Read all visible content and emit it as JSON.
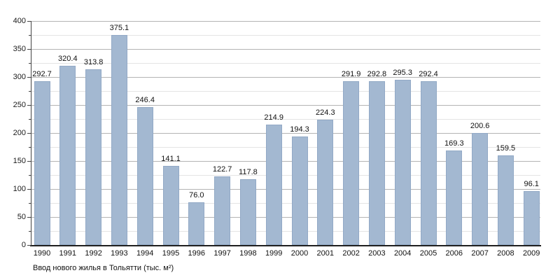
{
  "chart_data": {
    "type": "bar",
    "caption": "Ввод нового жилья в Тольятти (тыс. м²)",
    "categories": [
      "1990",
      "1991",
      "1992",
      "1993",
      "1994",
      "1995",
      "1996",
      "1997",
      "1998",
      "1999",
      "2000",
      "2001",
      "2002",
      "2003",
      "2004",
      "2005",
      "2006",
      "2007",
      "2008",
      "2009"
    ],
    "values": [
      292.7,
      320.4,
      313.8,
      375.1,
      246.4,
      141.1,
      76.0,
      122.7,
      117.8,
      214.9,
      194.3,
      224.3,
      291.9,
      292.8,
      295.3,
      292.4,
      169.3,
      200.6,
      159.5,
      96.1
    ],
    "value_labels": [
      "292.7",
      "320.4",
      "313.8",
      "375.1",
      "246.4",
      "141.1",
      "76.0",
      "122.7",
      "117.8",
      "214.9",
      "194.3",
      "224.3",
      "291.9",
      "292.8",
      "295.3",
      "292.4",
      "169.3",
      "200.6",
      "159.5",
      "96.1"
    ],
    "ylim": [
      0,
      400
    ],
    "y_major_step": 50,
    "y_minor_step": 25,
    "y_tick_labels": [
      "0",
      "50",
      "100",
      "150",
      "200",
      "250",
      "300",
      "350",
      "400"
    ],
    "grid": "on",
    "legend": "none",
    "colors": {
      "bar_fill": "#a3b8d1",
      "bar_border": "#92a9c6",
      "grid_major": "#b3b3b3",
      "grid_minor": "#e4e4e4",
      "axis": "#333333",
      "text": "#111111",
      "background": "#ffffff"
    }
  }
}
